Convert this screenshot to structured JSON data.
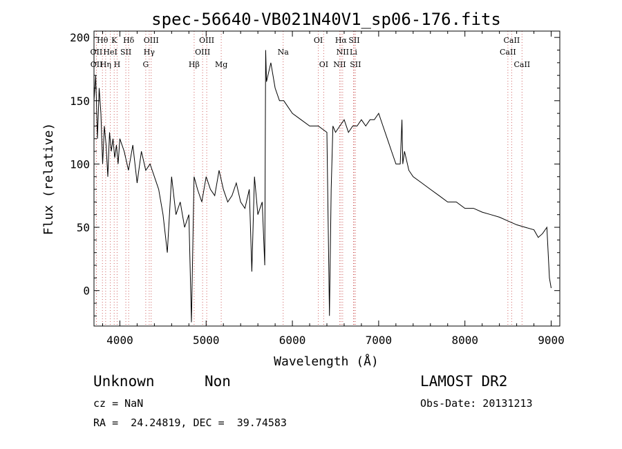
{
  "chart_data": {
    "type": "line",
    "title": "spec-56640-VB021N40V1_sp06-176.fits",
    "xlabel": "Wavelength (Å)",
    "ylabel": "Flux (relative)",
    "xlim": [
      3700,
      9100
    ],
    "ylim": [
      -28,
      205
    ],
    "xticks": [
      4000,
      5000,
      6000,
      7000,
      8000,
      9000
    ],
    "xtick_labels": [
      "4000",
      "5000",
      "6000",
      "7000",
      "8000",
      "9000"
    ],
    "yticks": [
      0,
      50,
      100,
      150,
      200
    ],
    "ytick_labels": [
      "0",
      "50",
      "100",
      "150",
      "200"
    ],
    "line_color": "#000000",
    "marker_color": "#d06060",
    "series": [
      {
        "x": [
          3700,
          3720,
          3740,
          3760,
          3780,
          3800,
          3820,
          3840,
          3860,
          3880,
          3900,
          3920,
          3940,
          3960,
          3980,
          4000,
          4050,
          4100,
          4150,
          4200,
          4250,
          4300,
          4350,
          4400,
          4450,
          4500,
          4550,
          4600,
          4650,
          4700,
          4750,
          4800,
          4830,
          4860,
          4900,
          4950,
          5000,
          5050,
          5100,
          5150,
          5200,
          5250,
          5300,
          5350,
          5400,
          5450,
          5500,
          5530,
          5560,
          5600,
          5650,
          5680,
          5690,
          5700,
          5750,
          5800,
          5850,
          5900,
          6000,
          6100,
          6200,
          6300,
          6400,
          6430,
          6450,
          6470,
          6500,
          6550,
          6600,
          6650,
          6700,
          6750,
          6800,
          6850,
          6900,
          6950,
          7000,
          7050,
          7100,
          7150,
          7200,
          7250,
          7270,
          7280,
          7300,
          7350,
          7400,
          7500,
          7600,
          7700,
          7800,
          7900,
          8000,
          8100,
          8200,
          8300,
          8400,
          8500,
          8600,
          8700,
          8800,
          8850,
          8900,
          8950,
          8980,
          9000
        ],
        "y": [
          150,
          170,
          120,
          160,
          140,
          100,
          130,
          115,
          90,
          125,
          110,
          120,
          105,
          115,
          100,
          120,
          110,
          95,
          115,
          85,
          110,
          95,
          100,
          90,
          80,
          60,
          30,
          90,
          60,
          70,
          50,
          60,
          -25,
          90,
          80,
          70,
          90,
          80,
          75,
          95,
          80,
          70,
          75,
          85,
          70,
          65,
          80,
          15,
          90,
          60,
          70,
          20,
          190,
          165,
          180,
          160,
          150,
          150,
          140,
          135,
          130,
          130,
          125,
          -20,
          80,
          130,
          125,
          130,
          135,
          125,
          130,
          130,
          135,
          130,
          135,
          135,
          140,
          130,
          120,
          110,
          100,
          100,
          135,
          100,
          110,
          95,
          90,
          85,
          80,
          75,
          70,
          70,
          65,
          65,
          62,
          60,
          58,
          55,
          52,
          50,
          48,
          42,
          45,
          50,
          10,
          2
        ]
      }
    ],
    "lines": [
      {
        "label": "Hθ",
        "x": 3798,
        "row": 1
      },
      {
        "label": "OII",
        "x": 3727,
        "row": 2
      },
      {
        "label": "OII",
        "x": 3729,
        "row": 3
      },
      {
        "label": "Hη",
        "x": 3835,
        "row": 3
      },
      {
        "label": "K",
        "x": 3934,
        "row": 1
      },
      {
        "label": "HeI",
        "x": 3889,
        "row": 2
      },
      {
        "label": "SII",
        "x": 4069,
        "row": 2
      },
      {
        "label": "H",
        "x": 3968,
        "row": 3
      },
      {
        "label": "Hδ",
        "x": 4102,
        "row": 1
      },
      {
        "label": "OIII",
        "x": 4363,
        "row": 1
      },
      {
        "label": "Hγ",
        "x": 4340,
        "row": 2
      },
      {
        "label": "G",
        "x": 4300,
        "row": 3
      },
      {
        "label": "OIII",
        "x": 5007,
        "row": 1
      },
      {
        "label": "OIII",
        "x": 4959,
        "row": 2
      },
      {
        "label": "Hβ",
        "x": 4861,
        "row": 3
      },
      {
        "label": "Mg",
        "x": 5175,
        "row": 3
      },
      {
        "label": "Na",
        "x": 5893,
        "row": 2
      },
      {
        "label": "OI",
        "x": 6300,
        "row": 1
      },
      {
        "label": "OI",
        "x": 6363,
        "row": 3
      },
      {
        "label": "Hα",
        "x": 6563,
        "row": 1
      },
      {
        "label": "SII",
        "x": 6716,
        "row": 1
      },
      {
        "label": "NII",
        "x": 6583,
        "row": 2
      },
      {
        "label": "Li",
        "x": 6708,
        "row": 2
      },
      {
        "label": "NII",
        "x": 6548,
        "row": 3
      },
      {
        "label": "SII",
        "x": 6731,
        "row": 3
      },
      {
        "label": "CaII",
        "x": 8542,
        "row": 1
      },
      {
        "label": "CaII",
        "x": 8498,
        "row": 2
      },
      {
        "label": "CaII",
        "x": 8662,
        "row": 3
      }
    ]
  },
  "info": {
    "class": "Unknown",
    "subclass": "Non",
    "survey": "LAMOST DR2",
    "cz": "cz = NaN",
    "obs_date": "Obs-Date: 20131213",
    "coords": "RA =  24.24819, DEC =  39.74583"
  }
}
